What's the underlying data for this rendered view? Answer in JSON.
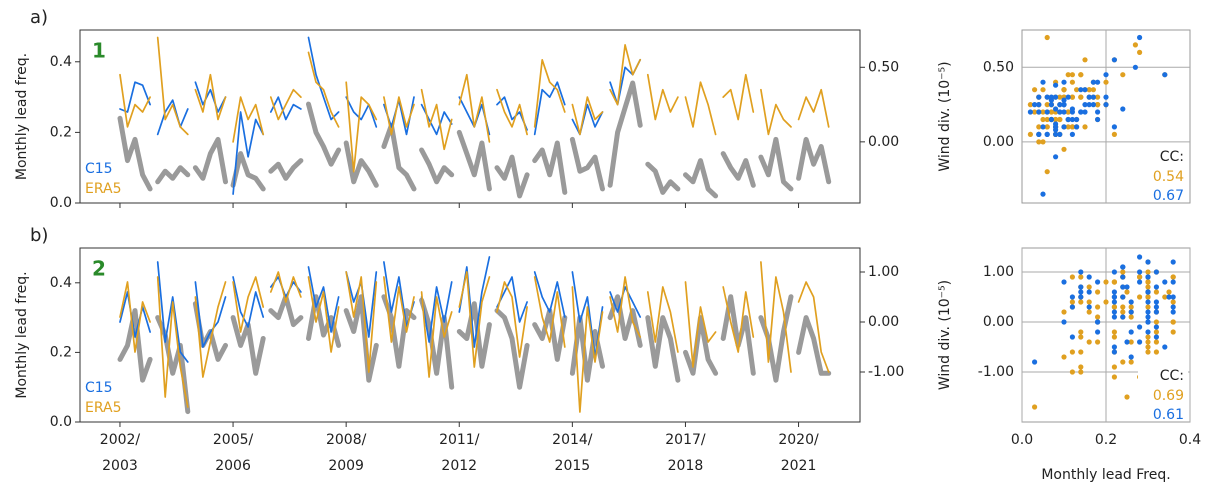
{
  "chart_data": [
    {
      "type": "line",
      "panel_label": "a)",
      "panel_number": "1",
      "ylabel": "Monthly lead freq.",
      "xlim": [
        2000.94,
        2021.63
      ],
      "xticks": [
        2002,
        2005,
        2008,
        2011,
        2014,
        2017,
        2020
      ],
      "xticklabels": false,
      "ylim": [
        0,
        0.49
      ],
      "yticks": [
        {
          "value": 0,
          "label": "0.0"
        },
        0.2,
        0.4
      ],
      "y2lim": [
        -0.41,
        0.75
      ],
      "y2ticks": [
        {
          "value": 0.5,
          "label": "0.50"
        },
        {
          "value": 0,
          "label": "0.00"
        }
      ],
      "x": [
        2002,
        2002.2,
        2002.4,
        2002.6,
        2002.8,
        null,
        2003,
        2003.2,
        2003.4,
        2003.6,
        2003.8,
        null,
        2004,
        2004.2,
        2004.4,
        2004.6,
        2004.8,
        null,
        2005,
        2005.2,
        2005.4,
        2005.6,
        2005.8,
        null,
        2006,
        2006.2,
        2006.4,
        2006.6,
        2006.8,
        null,
        2007,
        2007.2,
        2007.4,
        2007.6,
        2007.8,
        null,
        2008,
        2008.2,
        2008.4,
        2008.6,
        2008.8,
        null,
        2009,
        2009.2,
        2009.4,
        2009.6,
        2009.8,
        null,
        2010,
        2010.2,
        2010.4,
        2010.6,
        2010.8,
        null,
        2011,
        2011.2,
        2011.4,
        2011.6,
        2011.8,
        null,
        2012,
        2012.2,
        2012.4,
        2012.6,
        2012.8,
        null,
        2013,
        2013.2,
        2013.4,
        2013.6,
        2013.8,
        null,
        2014,
        2014.2,
        2014.4,
        2014.6,
        2014.8,
        null,
        2015,
        2015.2,
        2015.4,
        2015.6,
        2015.8,
        null,
        2016,
        2016.2,
        2016.4,
        2016.6,
        2016.8,
        null,
        2017,
        2017.2,
        2017.4,
        2017.6,
        2017.8,
        null,
        2018,
        2018.2,
        2018.4,
        2018.6,
        2018.8,
        null,
        2019,
        2019.2,
        2019.4,
        2019.6,
        2019.8,
        null,
        2020,
        2020.2,
        2020.4,
        2020.6,
        2020.8
      ],
      "series": [
        {
          "color": "#9a9a9a",
          "values": [
            0.24,
            0.12,
            0.18,
            0.08,
            0.04,
            null,
            0.06,
            0.09,
            0.07,
            0.1,
            0.08,
            null,
            0.1,
            0.07,
            0.14,
            0.18,
            0.06,
            null,
            0.05,
            0.14,
            0.08,
            0.07,
            0.04,
            null,
            0.09,
            0.11,
            0.07,
            0.1,
            0.12,
            null,
            0.28,
            0.2,
            0.16,
            0.11,
            0.15,
            null,
            0.17,
            0.06,
            0.12,
            0.09,
            0.05,
            null,
            0.16,
            0.22,
            0.1,
            0.08,
            0.04,
            null,
            0.15,
            0.11,
            0.06,
            0.1,
            0.08,
            null,
            0.2,
            0.14,
            0.08,
            0.17,
            0.04,
            null,
            0.1,
            0.07,
            0.13,
            0.02,
            0.08,
            null,
            0.12,
            0.15,
            0.08,
            0.17,
            0.03,
            null,
            0.18,
            0.09,
            0.1,
            0.13,
            0.04,
            null,
            0.05,
            0.2,
            0.27,
            0.34,
            0.22,
            null,
            0.11,
            0.09,
            0.03,
            0.06,
            0.04,
            null,
            0.08,
            0.06,
            0.12,
            0.04,
            0.02,
            null,
            0.14,
            0.1,
            0.07,
            0.12,
            0.05,
            null,
            0.13,
            0.08,
            0.18,
            0.06,
            0.04,
            null,
            0.07,
            0.18,
            0.11,
            0.16,
            0.06
          ]
        },
        {
          "name": "C15",
          "color": "#1a6fe0",
          "axis": "y2",
          "values": [
            0.22,
            0.2,
            0.4,
            0.38,
            0.25,
            null,
            0.05,
            0.2,
            0.28,
            0.1,
            0.22,
            null,
            0.4,
            0.25,
            0.35,
            0.2,
            0.3,
            null,
            -0.35,
            0.2,
            -0.1,
            0.15,
            0.05,
            null,
            0.2,
            0.3,
            0.15,
            0.25,
            0.22,
            null,
            0.7,
            0.45,
            0.3,
            0.15,
            0.2,
            null,
            0.3,
            0.2,
            0.15,
            0.25,
            0.1,
            null,
            0.25,
            0.1,
            0.28,
            0.05,
            0.3,
            null,
            0.25,
            0.15,
            0.05,
            0.2,
            0.12,
            null,
            0.3,
            0.2,
            0.1,
            0.25,
            0.05,
            null,
            0.25,
            0.3,
            0.15,
            0.2,
            0.08,
            null,
            0.05,
            0.35,
            0.3,
            0.4,
            0.25,
            null,
            0.15,
            0.05,
            0.25,
            0.1,
            0.2,
            null,
            0.4,
            0.25,
            0.5,
            0.45,
            0.55,
            null,
            null,
            null,
            null,
            null,
            null,
            null,
            null,
            null,
            null,
            null,
            null,
            null,
            null,
            null,
            null,
            null,
            null,
            null,
            null,
            null,
            null,
            null,
            null,
            null,
            null,
            null,
            null,
            null,
            null
          ]
        },
        {
          "name": "ERA5",
          "color": "#e0a020",
          "axis": "y2",
          "values": [
            0.45,
            0.1,
            0.25,
            0.2,
            0.3,
            null,
            0.7,
            0.15,
            0.25,
            0.1,
            0.05,
            null,
            0.35,
            0.2,
            0.45,
            0.15,
            0.3,
            null,
            0.0,
            0.3,
            0.15,
            0.25,
            0.05,
            null,
            0.3,
            0.15,
            0.25,
            0.35,
            0.3,
            null,
            0.6,
            0.4,
            0.35,
            0.2,
            0.1,
            null,
            0.4,
            -0.2,
            0.3,
            0.25,
            0.15,
            null,
            0.3,
            0.05,
            0.3,
            0.1,
            0.25,
            null,
            0.35,
            0.1,
            0.25,
            -0.05,
            0.15,
            null,
            0.25,
            0.45,
            0.1,
            0.3,
            0.0,
            null,
            0.35,
            0.2,
            0.1,
            0.25,
            0.05,
            null,
            0.1,
            0.55,
            0.4,
            0.35,
            0.2,
            null,
            0.25,
            0.05,
            0.3,
            0.15,
            0.2,
            null,
            0.35,
            0.25,
            0.65,
            0.45,
            0.55,
            null,
            0.45,
            0.15,
            0.35,
            0.2,
            0.3,
            null,
            0.3,
            0.1,
            0.4,
            0.25,
            0.05,
            null,
            0.3,
            0.35,
            0.15,
            0.45,
            0.2,
            null,
            0.35,
            0.05,
            0.25,
            0.15,
            0.1,
            null,
            0.15,
            0.3,
            0.2,
            0.35,
            0.1
          ]
        }
      ]
    },
    {
      "type": "scatter",
      "ylabel": "Wind div. (10⁻⁵)",
      "xlim": [
        0,
        0.4
      ],
      "xticks": [
        0.2
      ],
      "xticklabels": false,
      "ylim": [
        -0.41,
        0.75
      ],
      "yticks": [
        {
          "value": 0.5,
          "label": "0.50"
        },
        {
          "value": 0,
          "label": "0.00"
        }
      ],
      "cc_label": "CC:",
      "cc": [
        {
          "value": 0.54,
          "color": "#e0a020"
        },
        {
          "value": 0.67,
          "color": "#1a6fe0"
        }
      ]
    },
    {
      "type": "line",
      "panel_label": "b)",
      "panel_number": "2",
      "ylabel": "Monthly lead freq.",
      "xlim": [
        2000.94,
        2021.63
      ],
      "xticks": [
        {
          "value": 2002,
          "label": [
            "2002/",
            "2003"
          ]
        },
        {
          "value": 2005,
          "label": [
            "2005/",
            "2006"
          ]
        },
        {
          "value": 2008,
          "label": [
            "2008/",
            "2009"
          ]
        },
        {
          "value": 2011,
          "label": [
            "2011/",
            "2012"
          ]
        },
        {
          "value": 2014,
          "label": [
            "2014/",
            "2015"
          ]
        },
        {
          "value": 2017,
          "label": [
            "2017/",
            "2018"
          ]
        },
        {
          "value": 2020,
          "label": [
            "2020/",
            "2021"
          ]
        }
      ],
      "ylim": [
        0,
        0.5
      ],
      "yticks": [
        {
          "value": 0,
          "label": "0.0"
        },
        0.2,
        0.4
      ],
      "y2lim": [
        -2.0,
        1.48
      ],
      "y2ticks": [
        {
          "value": 1,
          "label": "1.00"
        },
        {
          "value": 0,
          "label": "0.00"
        },
        {
          "value": -1,
          "label": "-1.00"
        }
      ],
      "x": [
        2002,
        2002.2,
        2002.4,
        2002.6,
        2002.8,
        null,
        2003,
        2003.2,
        2003.4,
        2003.6,
        2003.8,
        null,
        2004,
        2004.2,
        2004.4,
        2004.6,
        2004.8,
        null,
        2005,
        2005.2,
        2005.4,
        2005.6,
        2005.8,
        null,
        2006,
        2006.2,
        2006.4,
        2006.6,
        2006.8,
        null,
        2007,
        2007.2,
        2007.4,
        2007.6,
        2007.8,
        null,
        2008,
        2008.2,
        2008.4,
        2008.6,
        2008.8,
        null,
        2009,
        2009.2,
        2009.4,
        2009.6,
        2009.8,
        null,
        2010,
        2010.2,
        2010.4,
        2010.6,
        2010.8,
        null,
        2011,
        2011.2,
        2011.4,
        2011.6,
        2011.8,
        null,
        2012,
        2012.2,
        2012.4,
        2012.6,
        2012.8,
        null,
        2013,
        2013.2,
        2013.4,
        2013.6,
        2013.8,
        null,
        2014,
        2014.2,
        2014.4,
        2014.6,
        2014.8,
        null,
        2015,
        2015.2,
        2015.4,
        2015.6,
        2015.8,
        null,
        2016,
        2016.2,
        2016.4,
        2016.6,
        2016.8,
        null,
        2017,
        2017.2,
        2017.4,
        2017.6,
        2017.8,
        null,
        2018,
        2018.2,
        2018.4,
        2018.6,
        2018.8,
        null,
        2019,
        2019.2,
        2019.4,
        2019.6,
        2019.8,
        null,
        2020,
        2020.2,
        2020.4,
        2020.6,
        2020.8
      ],
      "series": [
        {
          "color": "#9a9a9a",
          "values": [
            0.18,
            0.22,
            0.32,
            0.12,
            0.18,
            null,
            0.3,
            0.25,
            0.14,
            0.22,
            0.03,
            null,
            0.34,
            0.22,
            0.26,
            0.18,
            0.22,
            null,
            0.3,
            0.22,
            0.28,
            0.14,
            0.24,
            null,
            0.32,
            0.3,
            0.36,
            0.28,
            0.3,
            null,
            0.24,
            0.36,
            0.25,
            0.3,
            0.22,
            null,
            0.32,
            0.26,
            0.36,
            0.12,
            0.22,
            null,
            0.36,
            0.3,
            0.16,
            0.32,
            0.3,
            null,
            0.35,
            0.28,
            0.14,
            0.3,
            0.1,
            null,
            0.26,
            0.24,
            0.34,
            0.16,
            0.28,
            null,
            0.32,
            0.3,
            0.24,
            0.1,
            0.22,
            null,
            0.28,
            0.24,
            0.32,
            0.18,
            0.3,
            null,
            0.14,
            0.3,
            0.12,
            0.26,
            0.16,
            null,
            0.3,
            0.36,
            0.24,
            0.32,
            0.22,
            null,
            0.3,
            0.16,
            0.3,
            0.24,
            0.12,
            null,
            0.2,
            0.14,
            0.3,
            0.18,
            0.14,
            null,
            0.24,
            0.36,
            0.22,
            0.3,
            0.14,
            null,
            0.3,
            0.24,
            0.12,
            0.26,
            0.36,
            null,
            0.2,
            0.3,
            0.24,
            0.14,
            0.14
          ]
        },
        {
          "name": "C15",
          "color": "#1a6fe0",
          "axis": "y2",
          "values": [
            0.0,
            0.6,
            -0.3,
            0.3,
            -0.2,
            null,
            1.2,
            -0.4,
            0.5,
            -0.6,
            -0.8,
            null,
            0.8,
            -0.5,
            -0.2,
            0.0,
            0.5,
            null,
            0.9,
            0.2,
            -0.1,
            0.6,
            0.1,
            null,
            0.7,
            0.9,
            0.5,
            0.8,
            0.6,
            null,
            1.1,
            0.3,
            0.7,
            -0.2,
            0.5,
            null,
            1.0,
            0.4,
            0.8,
            -0.3,
            1.0,
            null,
            1.2,
            0.2,
            0.9,
            -0.1,
            0.4,
            null,
            0.5,
            -0.4,
            0.7,
            0.0,
            0.8,
            null,
            0.2,
            1.1,
            -0.5,
            0.6,
            1.3,
            null,
            0.3,
            0.6,
            0.9,
            0.0,
            0.4,
            null,
            1.0,
            0.5,
            0.2,
            0.8,
            0.1,
            null,
            1.0,
            0.0,
            0.5,
            -0.7,
            0.3,
            null,
            0.6,
            0.2,
            0.7,
            0.4,
            0.1,
            null,
            null,
            null,
            null,
            null,
            null,
            null,
            null,
            null,
            null,
            null,
            null,
            null,
            null,
            null,
            null,
            null,
            null,
            null,
            null,
            null,
            null,
            null,
            null,
            null,
            null,
            null,
            null,
            null,
            null
          ]
        },
        {
          "name": "ERA5",
          "color": "#e0a020",
          "axis": "y2",
          "values": [
            0.1,
            0.8,
            -0.6,
            0.4,
            0.0,
            null,
            0.9,
            -1.5,
            0.4,
            -0.9,
            -1.7,
            null,
            0.5,
            -1.1,
            -0.4,
            0.3,
            0.8,
            null,
            0.8,
            -0.2,
            0.5,
            0.9,
            0.3,
            null,
            0.6,
            1.0,
            0.4,
            0.9,
            0.5,
            null,
            0.9,
            0.0,
            0.6,
            -0.6,
            0.3,
            null,
            1.0,
            0.1,
            0.9,
            -1.0,
            0.8,
            null,
            0.9,
            -0.4,
            0.7,
            -0.2,
            0.5,
            null,
            0.6,
            -1.1,
            0.5,
            -0.3,
            0.2,
            null,
            0.3,
            1.0,
            -0.9,
            0.4,
            0.9,
            null,
            0.2,
            0.8,
            0.5,
            -0.7,
            0.3,
            null,
            0.9,
            0.1,
            -0.4,
            0.6,
            -0.5,
            null,
            0.7,
            -1.8,
            0.3,
            -0.8,
            0.2,
            null,
            0.5,
            -0.2,
            0.9,
            0.0,
            -0.3,
            null,
            0.6,
            -0.4,
            0.7,
            0.2,
            -0.6,
            null,
            0.8,
            -0.9,
            0.3,
            -0.4,
            -0.2,
            null,
            0.7,
            0.0,
            -0.6,
            0.6,
            -0.3,
            null,
            1.2,
            -0.8,
            0.9,
            0.2,
            -1.0,
            null,
            0.4,
            0.8,
            0.5,
            -0.6,
            -1.0
          ]
        }
      ]
    },
    {
      "type": "scatter",
      "ylabel": "Wind div. (10⁻⁵)",
      "xlabel": "Monthly lead Freq.",
      "xlim": [
        0,
        0.4
      ],
      "xticks": [
        {
          "value": 0,
          "label": "0.0"
        },
        0.2,
        0.4
      ],
      "ylim": [
        -2.0,
        1.48
      ],
      "yticks": [
        {
          "value": 1,
          "label": "1.00"
        },
        {
          "value": 0,
          "label": "0.00"
        },
        {
          "value": -1,
          "label": "-1.00"
        }
      ],
      "cc_label": "CC:",
      "cc": [
        {
          "value": 0.69,
          "color": "#e0a020"
        },
        {
          "value": 0.61,
          "color": "#1a6fe0"
        }
      ]
    }
  ]
}
